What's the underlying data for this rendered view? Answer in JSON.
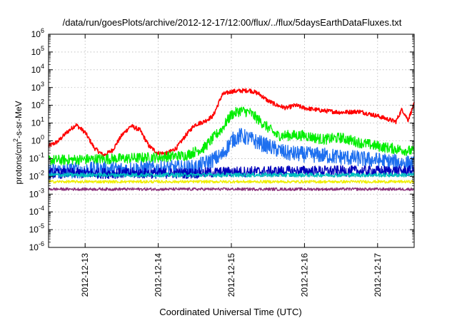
{
  "chart_data": {
    "type": "line",
    "title": "/data/run/goesPlots/archive/2012-12-17/12:00/flux/../flux/5daysEarthDataFluxes.txt",
    "xlabel": "Coordinated Universal Time (UTC)",
    "ylabel_base": "protons/cm",
    "ylabel_sup": "2",
    "ylabel_rest": "-s-sr-MeV",
    "yscale": "log",
    "ylim": [
      1e-06,
      1000000.0
    ],
    "xlim": [
      "2012-12-12T12:00",
      "2012-12-17T12:00"
    ],
    "grid": true,
    "y_ticks": [
      {
        "base": "10",
        "exp": "-6",
        "value": 1e-06
      },
      {
        "base": "10",
        "exp": "-5",
        "value": 1e-05
      },
      {
        "base": "10",
        "exp": "-4",
        "value": 0.0001
      },
      {
        "base": "10",
        "exp": "-3",
        "value": 0.001
      },
      {
        "base": "10",
        "exp": "-2",
        "value": 0.01
      },
      {
        "base": "10",
        "exp": "-1",
        "value": 0.1
      },
      {
        "base": "10",
        "exp": "0",
        "value": 1
      },
      {
        "base": "10",
        "exp": "1",
        "value": 10
      },
      {
        "base": "10",
        "exp": "2",
        "value": 100
      },
      {
        "base": "10",
        "exp": "3",
        "value": 1000
      },
      {
        "base": "10",
        "exp": "4",
        "value": 10000
      },
      {
        "base": "10",
        "exp": "5",
        "value": 100000
      },
      {
        "base": "10",
        "exp": "6",
        "value": 1000000
      }
    ],
    "x_ticks": [
      {
        "label": "2012-12-13",
        "value": "2012-12-13T00:00"
      },
      {
        "label": "2012-12-14",
        "value": "2012-12-14T00:00"
      },
      {
        "label": "2012-12-15",
        "value": "2012-12-15T00:00"
      },
      {
        "label": "2012-12-16",
        "value": "2012-12-16T00:00"
      },
      {
        "label": "2012-12-17",
        "value": "2012-12-17T00:00"
      }
    ],
    "series": [
      {
        "color": "#ff0000",
        "noise": 0.12,
        "points": [
          [
            "2012-12-12T12:00",
            0.5
          ],
          [
            "2012-12-12T15:00",
            0.9
          ],
          [
            "2012-12-12T18:00",
            3
          ],
          [
            "2012-12-12T21:00",
            8
          ],
          [
            "2012-12-13T00:00",
            3
          ],
          [
            "2012-12-13T03:00",
            0.4
          ],
          [
            "2012-12-13T06:00",
            0.15
          ],
          [
            "2012-12-13T09:00",
            0.3
          ],
          [
            "2012-12-13T12:00",
            2
          ],
          [
            "2012-12-13T15:00",
            7
          ],
          [
            "2012-12-13T18:00",
            4
          ],
          [
            "2012-12-13T21:00",
            0.5
          ],
          [
            "2012-12-14T00:00",
            0.2
          ],
          [
            "2012-12-14T03:00",
            0.2
          ],
          [
            "2012-12-14T06:00",
            0.4
          ],
          [
            "2012-12-14T09:00",
            2
          ],
          [
            "2012-12-14T12:00",
            8
          ],
          [
            "2012-12-14T15:00",
            12
          ],
          [
            "2012-12-14T18:00",
            25
          ],
          [
            "2012-12-14T21:00",
            400
          ],
          [
            "2012-12-15T00:00",
            600
          ],
          [
            "2012-12-15T06:00",
            700
          ],
          [
            "2012-12-15T09:00",
            450
          ],
          [
            "2012-12-15T12:00",
            180
          ],
          [
            "2012-12-15T15:00",
            100
          ],
          [
            "2012-12-15T18:00",
            70
          ],
          [
            "2012-12-15T21:00",
            100
          ],
          [
            "2012-12-16T00:00",
            70
          ],
          [
            "2012-12-16T06:00",
            50
          ],
          [
            "2012-12-16T12:00",
            40
          ],
          [
            "2012-12-16T18:00",
            45
          ],
          [
            "2012-12-17T00:00",
            25
          ],
          [
            "2012-12-17T06:00",
            12
          ],
          [
            "2012-12-17T08:00",
            60
          ],
          [
            "2012-12-17T10:00",
            15
          ],
          [
            "2012-12-17T12:00",
            120
          ]
        ]
      },
      {
        "color": "#00ee00",
        "noise": 0.3,
        "points": [
          [
            "2012-12-12T12:00",
            0.08
          ],
          [
            "2012-12-13T00:00",
            0.09
          ],
          [
            "2012-12-13T12:00",
            0.1
          ],
          [
            "2012-12-14T00:00",
            0.12
          ],
          [
            "2012-12-14T09:00",
            0.15
          ],
          [
            "2012-12-14T15:00",
            0.4
          ],
          [
            "2012-12-14T21:00",
            5
          ],
          [
            "2012-12-15T00:00",
            30
          ],
          [
            "2012-12-15T03:00",
            50
          ],
          [
            "2012-12-15T06:00",
            40
          ],
          [
            "2012-12-15T09:00",
            15
          ],
          [
            "2012-12-15T15:00",
            2
          ],
          [
            "2012-12-16T00:00",
            2
          ],
          [
            "2012-12-16T06:00",
            1.2
          ],
          [
            "2012-12-16T12:00",
            1.5
          ],
          [
            "2012-12-16T18:00",
            0.8
          ],
          [
            "2012-12-17T00:00",
            0.5
          ],
          [
            "2012-12-17T12:00",
            0.25
          ]
        ]
      },
      {
        "color": "#1e6fef",
        "noise": 0.45,
        "points": [
          [
            "2012-12-12T12:00",
            0.02
          ],
          [
            "2012-12-13T12:00",
            0.025
          ],
          [
            "2012-12-14T12:00",
            0.03
          ],
          [
            "2012-12-14T21:00",
            0.15
          ],
          [
            "2012-12-15T00:00",
            1
          ],
          [
            "2012-12-15T03:00",
            2
          ],
          [
            "2012-12-15T09:00",
            0.8
          ],
          [
            "2012-12-15T18:00",
            0.2
          ],
          [
            "2012-12-16T06:00",
            0.15
          ],
          [
            "2012-12-16T18:00",
            0.1
          ],
          [
            "2012-12-17T12:00",
            0.05
          ]
        ]
      },
      {
        "color": "#0000bb",
        "noise": 0.3,
        "points": [
          [
            "2012-12-12T12:00",
            0.015
          ],
          [
            "2012-12-14T12:00",
            0.015
          ],
          [
            "2012-12-15T00:00",
            0.018
          ],
          [
            "2012-12-16T00:00",
            0.02
          ],
          [
            "2012-12-17T12:00",
            0.02
          ]
        ]
      },
      {
        "color": "#00bfbf",
        "noise": 0.12,
        "points": [
          [
            "2012-12-12T12:00",
            0.012
          ],
          [
            "2012-12-17T12:00",
            0.012
          ]
        ]
      },
      {
        "color": "#eeee00",
        "noise": 0.08,
        "points": [
          [
            "2012-12-12T12:00",
            0.005
          ],
          [
            "2012-12-17T12:00",
            0.005
          ]
        ]
      },
      {
        "color": "#8b2e7a",
        "noise": 0.08,
        "points": [
          [
            "2012-12-12T12:00",
            0.0019
          ],
          [
            "2012-12-17T12:00",
            0.0019
          ]
        ]
      }
    ]
  }
}
